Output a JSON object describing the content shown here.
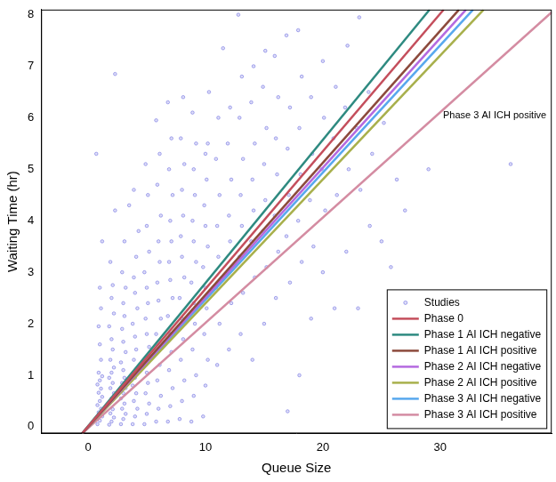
{
  "chart_data": {
    "type": "scatter",
    "x_label": "Queue Size",
    "y_label": "Waiting Time (hr)",
    "xlim": [
      -4,
      39.5
    ],
    "xticks": [
      0,
      10,
      20,
      30
    ],
    "ylim": [
      -0.13,
      8.1
    ],
    "yticks": [
      0,
      1,
      2,
      3,
      4,
      5,
      6,
      7,
      8
    ],
    "grid": false,
    "legend": "lower right",
    "annotations": [
      "Phase 3 AI ICH positive"
    ],
    "series": [
      {
        "name": "Studies",
        "type": "scatter",
        "marker": "circle",
        "color": "#4646d8",
        "x": [
          0.8,
          1.0,
          1.2,
          0.9,
          1.1,
          0.8,
          1.0,
          1.2,
          0.9,
          1.1,
          0.8,
          1.0,
          1.2,
          0.9,
          1.1,
          1.0,
          0.9,
          1.1,
          1.0,
          1.2,
          0.7,
          1.8,
          2.0,
          2.2,
          1.9,
          2.1,
          1.8,
          2.0,
          2.2,
          1.9,
          2.1,
          1.8,
          2.0,
          2.2,
          1.9,
          2.1,
          2.0,
          1.8,
          2.2,
          2.0,
          2.1,
          1.9,
          2.3,
          2.8,
          3.0,
          3.2,
          2.9,
          3.1,
          2.8,
          3.0,
          3.2,
          2.9,
          3.1,
          3.0,
          2.8,
          3.2,
          3.0,
          2.9,
          3.1,
          3.0,
          3.2,
          2.9,
          3.1,
          3.5,
          2.3,
          3.8,
          4.0,
          4.2,
          3.9,
          4.1,
          3.8,
          4.0,
          4.2,
          3.9,
          4.1,
          4.0,
          3.8,
          4.2,
          4.0,
          3.9,
          4.1,
          4.3,
          3.9,
          4.8,
          5.0,
          5.2,
          4.9,
          5.1,
          5.0,
          4.8,
          5.2,
          5.0,
          4.9,
          5.1,
          5.0,
          4.8,
          5.2,
          5.0,
          5.1,
          4.9,
          5.8,
          6.0,
          6.2,
          5.9,
          6.1,
          6.0,
          5.8,
          6.2,
          6.0,
          5.9,
          6.1,
          6.0,
          6.2,
          5.9,
          6.1,
          5.8,
          6.8,
          7.0,
          7.2,
          6.9,
          7.1,
          7.0,
          6.8,
          7.2,
          7.0,
          6.9,
          7.1,
          7.0,
          7.2,
          6.9,
          7.1,
          6.8,
          7.8,
          8.0,
          8.2,
          7.9,
          8.1,
          8.0,
          7.8,
          8.2,
          8.0,
          7.9,
          8.1,
          8.0,
          8.2,
          7.9,
          8.1,
          8.8,
          9.0,
          9.2,
          8.9,
          9.1,
          9.0,
          8.8,
          9.2,
          9.0,
          8.9,
          9.1,
          9.0,
          9.2,
          8.9,
          9.8,
          10.0,
          10.2,
          9.9,
          10.1,
          10.0,
          9.8,
          10.2,
          10.0,
          9.9,
          10.1,
          10.0,
          10.2,
          10.3,
          11.0,
          11.2,
          10.9,
          11.1,
          11.0,
          11.2,
          10.9,
          11.1,
          11.5,
          12.0,
          12.2,
          11.9,
          12.1,
          12.0,
          12.2,
          11.9,
          12.1,
          12.8,
          13.0,
          13.2,
          12.9,
          13.1,
          13.0,
          13.2,
          12.9,
          13.1,
          14.0,
          14.2,
          13.9,
          14.1,
          14.0,
          14.2,
          13.9,
          14.1,
          15.0,
          15.2,
          14.9,
          15.1,
          15.0,
          15.2,
          14.9,
          15.1,
          16.0,
          16.2,
          15.9,
          16.1,
          16.0,
          16.2,
          15.9,
          17.0,
          17.2,
          16.9,
          17.1,
          17.0,
          17.2,
          16.9,
          18.0,
          18.2,
          17.9,
          18.1,
          18.0,
          18.2,
          17.9,
          19.0,
          19.2,
          18.9,
          19.1,
          19.0,
          20.0,
          20.2,
          19.9,
          20.1,
          20.0,
          21.0,
          21.2,
          20.9,
          21.1,
          22.0,
          22.2,
          21.9,
          22.1,
          23.0,
          23.2,
          22.9,
          23.1,
          24.0,
          24.2,
          23.9,
          25.0,
          25.2,
          25.8,
          26.3,
          27.0,
          29.0,
          36.0
        ],
        "values": [
          0.05,
          0.12,
          0.2,
          0.28,
          0.35,
          0.42,
          0.5,
          0.58,
          0.66,
          0.74,
          0.82,
          0.9,
          0.98,
          1.05,
          1.3,
          1.6,
          1.95,
          2.3,
          2.7,
          3.6,
          5.3,
          0.04,
          0.1,
          0.18,
          0.26,
          0.34,
          0.45,
          0.55,
          0.65,
          0.75,
          0.85,
          0.95,
          1.05,
          1.15,
          1.3,
          1.5,
          1.7,
          1.95,
          2.2,
          2.5,
          2.75,
          3.2,
          4.2,
          0.05,
          0.15,
          0.25,
          0.35,
          0.45,
          0.55,
          0.65,
          0.75,
          0.85,
          0.95,
          1.1,
          1.25,
          1.45,
          1.65,
          1.9,
          2.15,
          2.4,
          2.7,
          3.0,
          3.6,
          4.3,
          6.85,
          0.05,
          0.2,
          0.35,
          0.5,
          0.65,
          0.8,
          0.95,
          1.1,
          1.3,
          1.5,
          1.75,
          2.0,
          2.3,
          2.6,
          2.9,
          3.3,
          3.8,
          4.6,
          0.05,
          0.25,
          0.45,
          0.65,
          0.85,
          1.05,
          1.3,
          1.55,
          1.8,
          2.1,
          2.4,
          2.7,
          3.0,
          3.4,
          3.9,
          4.5,
          5.1,
          0.1,
          0.35,
          0.6,
          0.9,
          1.2,
          1.5,
          1.8,
          2.1,
          2.45,
          2.8,
          3.2,
          3.6,
          4.1,
          4.7,
          5.3,
          5.95,
          0.1,
          0.4,
          0.75,
          1.1,
          1.45,
          1.8,
          2.15,
          2.5,
          2.85,
          3.2,
          3.6,
          4.0,
          4.5,
          5.0,
          5.6,
          6.3,
          0.15,
          0.5,
          0.9,
          1.3,
          1.7,
          2.1,
          2.5,
          2.9,
          3.3,
          3.7,
          4.1,
          4.6,
          5.1,
          5.6,
          6.4,
          0.1,
          0.6,
          1.0,
          1.5,
          2.0,
          2.4,
          2.8,
          3.2,
          3.6,
          4.0,
          4.5,
          5.0,
          5.5,
          6.1,
          0.2,
          0.8,
          1.3,
          1.8,
          2.3,
          2.7,
          3.1,
          3.5,
          3.9,
          4.3,
          4.8,
          5.3,
          5.5,
          6.5,
          1.2,
          2.0,
          2.7,
          3.3,
          3.9,
          4.5,
          5.2,
          6.0,
          7.35,
          1.5,
          2.4,
          3.0,
          3.6,
          4.1,
          4.8,
          5.5,
          6.2,
          8.0,
          1.8,
          2.6,
          3.3,
          3.9,
          4.5,
          5.2,
          6.0,
          6.8,
          1.3,
          2.9,
          3.6,
          4.2,
          4.8,
          5.5,
          6.3,
          7.0,
          2.0,
          3.1,
          3.8,
          4.4,
          5.1,
          5.8,
          6.6,
          7.3,
          2.5,
          3.4,
          4.1,
          4.9,
          5.6,
          6.4,
          7.2,
          0.3,
          2.8,
          3.7,
          4.5,
          5.4,
          6.2,
          7.6,
          1.0,
          3.2,
          4.0,
          4.9,
          5.8,
          6.8,
          7.7,
          2.1,
          3.5,
          4.4,
          5.3,
          6.4,
          3.0,
          4.2,
          5.0,
          6.0,
          7.1,
          2.3,
          4.5,
          5.6,
          6.6,
          3.4,
          5.0,
          6.2,
          7.4,
          2.3,
          4.6,
          5.8,
          7.95,
          3.9,
          5.3,
          6.5,
          3.6,
          5.9,
          3.1,
          4.8,
          4.2,
          5.0,
          5.1
        ]
      },
      {
        "name": "Phase 0",
        "type": "line",
        "color": "#c44e5c",
        "x": [
          -0.5,
          30.3
        ],
        "values": [
          -0.13,
          8.1
        ]
      },
      {
        "name": "Phase 1 AI ICH negative",
        "type": "line",
        "color": "#2e8a80",
        "x": [
          -0.5,
          29.1
        ],
        "values": [
          -0.13,
          8.1
        ]
      },
      {
        "name": "Phase 1 AI ICH positive",
        "type": "line",
        "color": "#8c4a3c",
        "x": [
          -0.5,
          31.6
        ],
        "values": [
          -0.13,
          8.1
        ]
      },
      {
        "name": "Phase 2 AI ICH negative",
        "type": "line",
        "color": "#b46ae0",
        "x": [
          -0.5,
          32.2
        ],
        "values": [
          -0.13,
          8.1
        ]
      },
      {
        "name": "Phase 2 AI ICH positive",
        "type": "line",
        "color": "#a8b04c",
        "x": [
          -0.5,
          33.7
        ],
        "values": [
          -0.13,
          8.1
        ]
      },
      {
        "name": "Phase 3 AI ICH negative",
        "type": "line",
        "color": "#58a8ee",
        "x": [
          -0.5,
          32.8
        ],
        "values": [
          -0.13,
          8.1
        ]
      },
      {
        "name": "Phase 3 AI ICH positive",
        "type": "line",
        "color": "#d48ca2",
        "x": [
          -0.5,
          39.5
        ],
        "values": [
          -0.13,
          8.05
        ]
      }
    ]
  }
}
